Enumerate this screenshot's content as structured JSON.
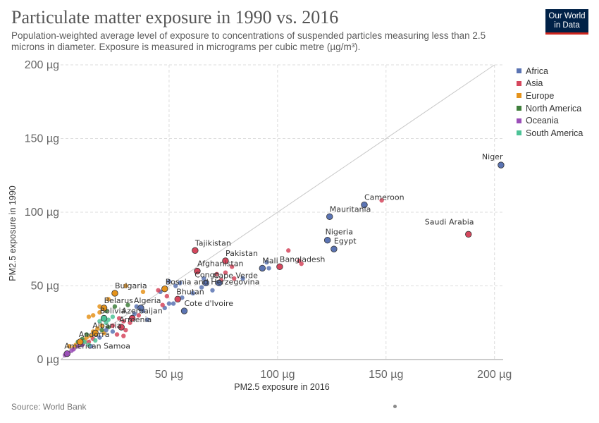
{
  "header": {
    "title": "Particulate matter exposure in 1990 vs. 2016",
    "subtitle": "Population-weighted average level of exposure to concentrations of suspended particles measuring less than 2.5 microns in diameter. Exposure is measured in micrograms per cubic metre (µg/m³).",
    "logo_line1": "Our World",
    "logo_line2": "in Data"
  },
  "footer": {
    "source": "Source: World Bank"
  },
  "colors": {
    "Africa": "#5b74b3",
    "Asia": "#d5475d",
    "Europe": "#e5931b",
    "North America": "#3f7f3c",
    "Oceania": "#9b4fb8",
    "South America": "#4dc397"
  },
  "chart_data": {
    "type": "scatter",
    "xlabel": "PM2.5 exposure in 2016",
    "ylabel": "PM2.5 exposure in 1990",
    "xlim": [
      0,
      204
    ],
    "ylim": [
      0,
      200
    ],
    "x_ticks": [
      {
        "v": 50,
        "label": "50 µg"
      },
      {
        "v": 100,
        "label": "100 µg"
      },
      {
        "v": 150,
        "label": "150 µg"
      },
      {
        "v": 200,
        "label": "200 µg"
      }
    ],
    "y_ticks": [
      {
        "v": 0,
        "label": "0 µg"
      },
      {
        "v": 50,
        "label": "50 µg"
      },
      {
        "v": 100,
        "label": "100 µg"
      },
      {
        "v": 150,
        "label": "150 µg"
      },
      {
        "v": 200,
        "label": "200 µg"
      }
    ],
    "diagonal_line": true,
    "grid": true,
    "legend": [
      "Africa",
      "Asia",
      "Europe",
      "North America",
      "Oceania",
      "South America"
    ],
    "legend_position": "right",
    "labeled_points": [
      {
        "label": "Niger",
        "region": "Africa",
        "x": 203,
        "y": 132
      },
      {
        "label": "Cameroon",
        "region": "Africa",
        "x": 140,
        "y": 105
      },
      {
        "label": "Saudi Arabia",
        "region": "Asia",
        "x": 188,
        "y": 85
      },
      {
        "label": "Mauritania",
        "region": "Africa",
        "x": 124,
        "y": 97
      },
      {
        "label": "Nigeria",
        "region": "Africa",
        "x": 123,
        "y": 81
      },
      {
        "label": "Egypt",
        "region": "Africa",
        "x": 126,
        "y": 75
      },
      {
        "label": "Bangladesh",
        "region": "Asia",
        "x": 101,
        "y": 63
      },
      {
        "label": "Mali",
        "region": "Africa",
        "x": 93,
        "y": 62
      },
      {
        "label": "Tajikistan",
        "region": "Asia",
        "x": 62,
        "y": 74
      },
      {
        "label": "Pakistan",
        "region": "Asia",
        "x": 76,
        "y": 67
      },
      {
        "label": "Afghanistan",
        "region": "Asia",
        "x": 63,
        "y": 60
      },
      {
        "label": "Congo",
        "region": "Africa",
        "x": 67,
        "y": 52
      },
      {
        "label": "Cape Verde",
        "region": "Africa",
        "x": 73,
        "y": 52
      },
      {
        "label": "Bosnia and Herzegovina",
        "region": "Europe",
        "x": 48,
        "y": 48
      },
      {
        "label": "Bulgaria",
        "region": "Europe",
        "x": 25,
        "y": 45
      },
      {
        "label": "Bhutan",
        "region": "Asia",
        "x": 54,
        "y": 41
      },
      {
        "label": "Cote d'Ivoire",
        "region": "Africa",
        "x": 57,
        "y": 33
      },
      {
        "label": "Belarus",
        "region": "Europe",
        "x": 20,
        "y": 35
      },
      {
        "label": "Algeria",
        "region": "Africa",
        "x": 37,
        "y": 35
      },
      {
        "label": "Bolivia",
        "region": "South America",
        "x": 20,
        "y": 28
      },
      {
        "label": "Azerbaijan",
        "region": "Asia",
        "x": 33,
        "y": 28
      },
      {
        "label": "Armenia",
        "region": "Asia",
        "x": 28,
        "y": 22
      },
      {
        "label": "Albania",
        "region": "Europe",
        "x": 16,
        "y": 18
      },
      {
        "label": "Andorra",
        "region": "Europe",
        "x": 9,
        "y": 12
      },
      {
        "label": "American Samoa",
        "region": "Oceania",
        "x": 3,
        "y": 4
      }
    ],
    "other_points": [
      {
        "region": "Asia",
        "x": 148,
        "y": 108
      },
      {
        "region": "Asia",
        "x": 105,
        "y": 74
      },
      {
        "region": "Asia",
        "x": 111,
        "y": 65
      },
      {
        "region": "Asia",
        "x": 110,
        "y": 67
      },
      {
        "region": "Africa",
        "x": 96,
        "y": 62
      },
      {
        "region": "Africa",
        "x": 95,
        "y": 66
      },
      {
        "region": "Asia",
        "x": 79,
        "y": 63
      },
      {
        "region": "Asia",
        "x": 72,
        "y": 58
      },
      {
        "region": "Asia",
        "x": 76,
        "y": 59
      },
      {
        "region": "Asia",
        "x": 80,
        "y": 55
      },
      {
        "region": "Africa",
        "x": 84,
        "y": 55
      },
      {
        "region": "Asia",
        "x": 74,
        "y": 54
      },
      {
        "region": "Africa",
        "x": 66,
        "y": 55
      },
      {
        "region": "Africa",
        "x": 70,
        "y": 47
      },
      {
        "region": "Africa",
        "x": 65,
        "y": 49
      },
      {
        "region": "Africa",
        "x": 55,
        "y": 52
      },
      {
        "region": "Africa",
        "x": 53,
        "y": 50
      },
      {
        "region": "Africa",
        "x": 50,
        "y": 53
      },
      {
        "region": "Africa",
        "x": 46,
        "y": 46
      },
      {
        "region": "Asia",
        "x": 49,
        "y": 43
      },
      {
        "region": "Asia",
        "x": 45,
        "y": 47
      },
      {
        "region": "Africa",
        "x": 56,
        "y": 42
      },
      {
        "region": "Africa",
        "x": 52,
        "y": 38
      },
      {
        "region": "Africa",
        "x": 48,
        "y": 35
      },
      {
        "region": "Asia",
        "x": 47,
        "y": 37
      },
      {
        "region": "Africa",
        "x": 50,
        "y": 38
      },
      {
        "region": "Africa",
        "x": 61,
        "y": 45
      },
      {
        "region": "Europe",
        "x": 30,
        "y": 50
      },
      {
        "region": "Europe",
        "x": 38,
        "y": 46
      },
      {
        "region": "Europe",
        "x": 22,
        "y": 41
      },
      {
        "region": "Europe",
        "x": 18,
        "y": 36
      },
      {
        "region": "Europe",
        "x": 18,
        "y": 32
      },
      {
        "region": "Europe",
        "x": 15,
        "y": 30
      },
      {
        "region": "Europe",
        "x": 13,
        "y": 29
      },
      {
        "region": "North America",
        "x": 31,
        "y": 37
      },
      {
        "region": "North America",
        "x": 25,
        "y": 36
      },
      {
        "region": "North America",
        "x": 21,
        "y": 33
      },
      {
        "region": "Africa",
        "x": 35,
        "y": 36
      },
      {
        "region": "Africa",
        "x": 38,
        "y": 33
      },
      {
        "region": "Africa",
        "x": 34,
        "y": 31
      },
      {
        "region": "Africa",
        "x": 40,
        "y": 27
      },
      {
        "region": "Asia",
        "x": 36,
        "y": 30
      },
      {
        "region": "Asia",
        "x": 32,
        "y": 25
      },
      {
        "region": "Asia",
        "x": 29,
        "y": 26
      },
      {
        "region": "Asia",
        "x": 27,
        "y": 28
      },
      {
        "region": "Asia",
        "x": 24,
        "y": 23
      },
      {
        "region": "Asia",
        "x": 30,
        "y": 20
      },
      {
        "region": "Asia",
        "x": 26,
        "y": 17
      },
      {
        "region": "Asia",
        "x": 29,
        "y": 16
      },
      {
        "region": "South America",
        "x": 22,
        "y": 27
      },
      {
        "region": "South America",
        "x": 24,
        "y": 29
      },
      {
        "region": "South America",
        "x": 21,
        "y": 25
      },
      {
        "region": "South America",
        "x": 18,
        "y": 26
      },
      {
        "region": "Europe",
        "x": 17,
        "y": 21
      },
      {
        "region": "Europe",
        "x": 19,
        "y": 23
      },
      {
        "region": "Europe",
        "x": 15,
        "y": 19
      },
      {
        "region": "Europe",
        "x": 14,
        "y": 16
      },
      {
        "region": "Europe",
        "x": 12,
        "y": 15
      },
      {
        "region": "Europe",
        "x": 20,
        "y": 18
      },
      {
        "region": "Europe",
        "x": 11,
        "y": 13
      },
      {
        "region": "Europe",
        "x": 7,
        "y": 10
      },
      {
        "region": "Europe",
        "x": 6,
        "y": 8
      },
      {
        "region": "Europe",
        "x": 4,
        "y": 9
      },
      {
        "region": "North America",
        "x": 22,
        "y": 22
      },
      {
        "region": "North America",
        "x": 19,
        "y": 20
      },
      {
        "region": "North America",
        "x": 16,
        "y": 18
      },
      {
        "region": "North America",
        "x": 12,
        "y": 17
      },
      {
        "region": "North America",
        "x": 10,
        "y": 14
      },
      {
        "region": "North America",
        "x": 8,
        "y": 12
      },
      {
        "region": "Africa",
        "x": 21,
        "y": 20
      },
      {
        "region": "Africa",
        "x": 24,
        "y": 19
      },
      {
        "region": "Africa",
        "x": 14,
        "y": 9
      },
      {
        "region": "Africa",
        "x": 18,
        "y": 15
      },
      {
        "region": "Asia",
        "x": 13,
        "y": 12
      },
      {
        "region": "Asia",
        "x": 10,
        "y": 11
      },
      {
        "region": "Asia",
        "x": 15,
        "y": 14
      },
      {
        "region": "Oceania",
        "x": 6,
        "y": 7
      },
      {
        "region": "Oceania",
        "x": 8,
        "y": 9
      },
      {
        "region": "Oceania",
        "x": 5,
        "y": 6
      },
      {
        "region": "Oceania",
        "x": 10,
        "y": 10
      },
      {
        "region": "Oceania",
        "x": 2,
        "y": 3
      },
      {
        "region": "South America",
        "x": 16,
        "y": 13
      },
      {
        "region": "South America",
        "x": 13,
        "y": 10
      },
      {
        "region": "South America",
        "x": 11,
        "y": 12
      }
    ]
  }
}
